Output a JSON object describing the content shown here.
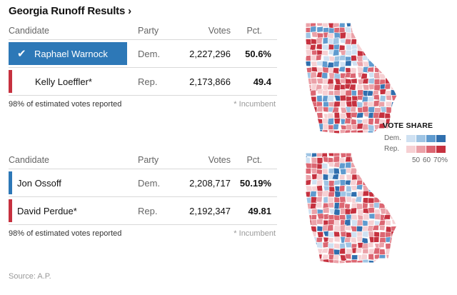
{
  "title": "Georgia Runoff Results",
  "title_chevron": "›",
  "headers": {
    "candidate": "Candidate",
    "party": "Party",
    "votes": "Votes",
    "pct": "Pct."
  },
  "races": [
    {
      "candidates": [
        {
          "name": "Raphael Warnock",
          "party": "Dem.",
          "votes": "2,227,296",
          "pct": "50.6%",
          "winner": true,
          "color": "#2d78b7"
        },
        {
          "name": "Kelly Loeffler*",
          "party": "Rep.",
          "votes": "2,173,866",
          "pct": "49.4",
          "winner": false,
          "color": "#c6313f"
        }
      ],
      "reported": "98% of estimated votes reported",
      "incumbent_note": "* Incumbent"
    },
    {
      "candidates": [
        {
          "name": "Jon Ossoff",
          "party": "Dem.",
          "votes": "2,208,717",
          "pct": "50.19%",
          "winner": false,
          "color": "#2d78b7"
        },
        {
          "name": "David Perdue*",
          "party": "Rep.",
          "votes": "2,192,347",
          "pct": "49.81",
          "winner": false,
          "color": "#c6313f"
        }
      ],
      "reported": "98% of estimated votes reported",
      "incumbent_note": "* Incumbent"
    }
  ],
  "legend": {
    "title": "VOTE SHARE",
    "dem_label": "Dem.",
    "rep_label": "Rep.",
    "ticks": [
      "50",
      "60",
      "70%"
    ],
    "dem_colors": [
      "#cfe1f2",
      "#9ec4e4",
      "#5f9bcf",
      "#2f6fae"
    ],
    "rep_colors": [
      "#f6d0d3",
      "#eba1a8",
      "#dc6672",
      "#c6313f"
    ]
  },
  "source": "Source: A.P."
}
